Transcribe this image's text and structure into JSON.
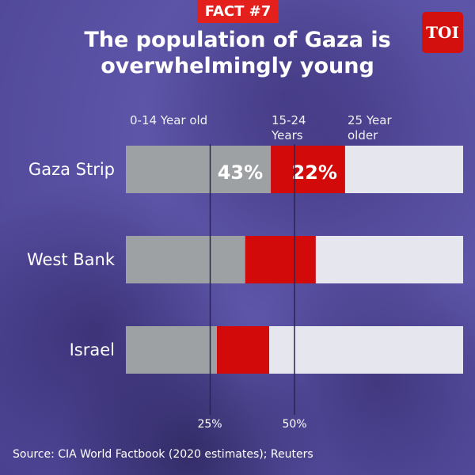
{
  "header": {
    "badge": "FACT #7",
    "title": "The population of Gaza is overwhelmingly young",
    "logo": "TOI"
  },
  "source": "Source: CIA World Factbook (2020 estimates); Reuters",
  "chart_data": {
    "type": "bar",
    "stacked": true,
    "orientation": "horizontal",
    "title": "The population of Gaza is overwhelmingly young",
    "categories": [
      "Gaza Strip",
      "West Bank",
      "Israel"
    ],
    "series": [
      {
        "name": "0-14 Year old",
        "color": "#9ea1a3",
        "values": [
          43,
          35.4,
          27
        ]
      },
      {
        "name": "15-24 Years",
        "color": "#d20a0a",
        "values": [
          22,
          20.9,
          15.5
        ]
      },
      {
        "name": "25 Year older",
        "color": "#e6e6ee",
        "values": [
          35,
          43.7,
          57.5
        ]
      }
    ],
    "data_labels": {
      "Gaza Strip": [
        "43%",
        "22%"
      ]
    },
    "xlim": [
      0,
      100
    ],
    "reference_lines": [
      25,
      50
    ],
    "tick_labels": [
      "25%",
      "50%"
    ]
  }
}
